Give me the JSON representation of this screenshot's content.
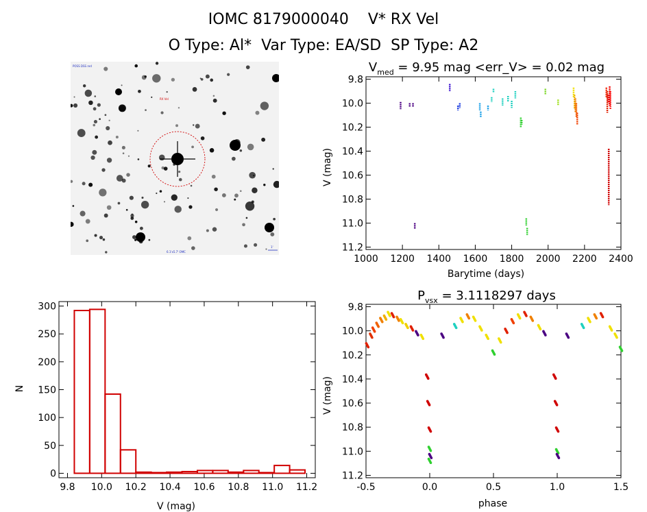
{
  "header": {
    "line1": "IOMC 8179000040    V* RX Vel",
    "line2": "O Type: Al*  Var Type: EA/SD  SP Type: A2"
  },
  "sky_image": {
    "top_label": "POSS DSS red",
    "target_label": "RX Vel",
    "bottom_label": "6.1'x5.7' OMC",
    "scale_label": "1'"
  },
  "chart_data": [
    {
      "type": "scatter",
      "title": "V_med = 9.95 mag <err_V> = 0.02 mag",
      "title_main": "V",
      "title_sub": "med",
      "title_rest": " = 9.95 mag <err_V> = 0.02 mag",
      "xlabel": "Barytime (days)",
      "ylabel": "V (mag)",
      "xlim": [
        1000,
        2400
      ],
      "ylim": [
        11.22,
        9.78
      ],
      "xticks": [
        1000,
        1200,
        1400,
        1600,
        1800,
        2000,
        2200,
        2400
      ],
      "yticks": [
        9.8,
        10.0,
        10.2,
        10.4,
        10.6,
        10.8,
        11.0,
        11.2
      ],
      "segments": [
        {
          "x": 1190,
          "y1": 9.99,
          "y2": 10.05,
          "color": "#4b0082"
        },
        {
          "x": 1240,
          "y1": 10.0,
          "y2": 10.03,
          "color": "#4b0082"
        },
        {
          "x": 1258,
          "y1": 10.0,
          "y2": 10.03,
          "color": "#4b0082"
        },
        {
          "x": 1268,
          "y1": 11.0,
          "y2": 11.05,
          "color": "#4b0082"
        },
        {
          "x": 1460,
          "y1": 9.84,
          "y2": 9.9,
          "color": "#3b10d0"
        },
        {
          "x": 1505,
          "y1": 10.02,
          "y2": 10.06,
          "color": "#2040e0"
        },
        {
          "x": 1515,
          "y1": 10.0,
          "y2": 10.04,
          "color": "#2040e0"
        },
        {
          "x": 1625,
          "y1": 10.0,
          "y2": 10.06,
          "color": "#1ca0e8"
        },
        {
          "x": 1630,
          "y1": 10.07,
          "y2": 10.12,
          "color": "#1ca0e8"
        },
        {
          "x": 1670,
          "y1": 10.02,
          "y2": 10.06,
          "color": "#1ca0e8"
        },
        {
          "x": 1690,
          "y1": 9.95,
          "y2": 9.99,
          "color": "#20d0c0"
        },
        {
          "x": 1700,
          "y1": 9.88,
          "y2": 9.91,
          "color": "#20d0c0"
        },
        {
          "x": 1750,
          "y1": 9.96,
          "y2": 10.02,
          "color": "#20d0c0"
        },
        {
          "x": 1780,
          "y1": 9.94,
          "y2": 9.99,
          "color": "#20d0c0"
        },
        {
          "x": 1800,
          "y1": 9.98,
          "y2": 10.04,
          "color": "#20d0c0"
        },
        {
          "x": 1820,
          "y1": 9.9,
          "y2": 9.96,
          "color": "#20d0c0"
        },
        {
          "x": 1850,
          "y1": 10.12,
          "y2": 10.2,
          "color": "#30d030"
        },
        {
          "x": 1855,
          "y1": 10.14,
          "y2": 10.18,
          "color": "#30d030"
        },
        {
          "x": 1880,
          "y1": 10.96,
          "y2": 11.02,
          "color": "#30d030"
        },
        {
          "x": 1885,
          "y1": 11.04,
          "y2": 11.1,
          "color": "#30d030"
        },
        {
          "x": 1985,
          "y1": 9.88,
          "y2": 9.93,
          "color": "#7ed82a"
        },
        {
          "x": 2055,
          "y1": 9.97,
          "y2": 10.02,
          "color": "#a0e020"
        },
        {
          "x": 2140,
          "y1": 9.87,
          "y2": 9.95,
          "color": "#f0e000"
        },
        {
          "x": 2145,
          "y1": 9.93,
          "y2": 10.05,
          "color": "#f0b000"
        },
        {
          "x": 2150,
          "y1": 9.96,
          "y2": 10.08,
          "color": "#f08000"
        },
        {
          "x": 2155,
          "y1": 10.0,
          "y2": 10.12,
          "color": "#f06000"
        },
        {
          "x": 2160,
          "y1": 10.08,
          "y2": 10.18,
          "color": "#f04000"
        },
        {
          "x": 2320,
          "y1": 9.87,
          "y2": 9.95,
          "color": "#f02000"
        },
        {
          "x": 2325,
          "y1": 9.9,
          "y2": 10.08,
          "color": "#e02000"
        },
        {
          "x": 2330,
          "y1": 9.93,
          "y2": 10.0,
          "color": "#e00000"
        },
        {
          "x": 2333,
          "y1": 10.38,
          "y2": 10.85,
          "color": "#d00000"
        },
        {
          "x": 2338,
          "y1": 9.86,
          "y2": 10.02,
          "color": "#f00000"
        },
        {
          "x": 2342,
          "y1": 9.9,
          "y2": 10.05,
          "color": "#ff2020"
        }
      ]
    },
    {
      "type": "bar",
      "title": "",
      "xlabel": "V (mag)",
      "ylabel": "N",
      "xlim": [
        9.75,
        11.25
      ],
      "ylim": [
        -8,
        308
      ],
      "xticks": [
        9.8,
        10.0,
        10.2,
        10.4,
        10.6,
        10.8,
        11.0,
        11.2
      ],
      "yticks": [
        0,
        50,
        100,
        150,
        200,
        250,
        300
      ],
      "bins": [
        {
          "x0": 9.84,
          "x1": 9.93,
          "n": 292
        },
        {
          "x0": 9.93,
          "x1": 10.02,
          "n": 294
        },
        {
          "x0": 10.02,
          "x1": 10.11,
          "n": 142
        },
        {
          "x0": 10.11,
          "x1": 10.2,
          "n": 42
        },
        {
          "x0": 10.2,
          "x1": 10.29,
          "n": 2
        },
        {
          "x0": 10.29,
          "x1": 10.38,
          "n": 0
        },
        {
          "x0": 10.38,
          "x1": 10.47,
          "n": 2
        },
        {
          "x0": 10.47,
          "x1": 10.56,
          "n": 3
        },
        {
          "x0": 10.56,
          "x1": 10.65,
          "n": 5
        },
        {
          "x0": 10.65,
          "x1": 10.74,
          "n": 5
        },
        {
          "x0": 10.74,
          "x1": 10.83,
          "n": 2
        },
        {
          "x0": 10.83,
          "x1": 10.92,
          "n": 5
        },
        {
          "x0": 10.92,
          "x1": 11.01,
          "n": 0
        },
        {
          "x0": 11.01,
          "x1": 11.1,
          "n": 14
        },
        {
          "x0": 11.1,
          "x1": 11.19,
          "n": 6
        }
      ]
    },
    {
      "type": "scatter",
      "title": "P_vsx = 3.1118297 days",
      "title_main": "P",
      "title_sub": "vsx",
      "title_rest": " = 3.1118297 days",
      "xlabel": "phase",
      "ylabel": "V (mag)",
      "xlim": [
        -0.5,
        1.5
      ],
      "ylim": [
        11.22,
        9.78
      ],
      "xticks": [
        -0.5,
        0.0,
        0.5,
        1.0,
        1.5
      ],
      "yticks": [
        9.8,
        10.0,
        10.2,
        10.4,
        10.6,
        10.8,
        11.0,
        11.2
      ],
      "curve_description": "Phase-folded light curve repeated for two cycles.",
      "points": [
        {
          "phase": -0.49,
          "v": 10.12,
          "color": "#e02000"
        },
        {
          "phase": -0.46,
          "v": 10.04,
          "color": "#e03000"
        },
        {
          "phase": -0.44,
          "v": 9.99,
          "color": "#f04000"
        },
        {
          "phase": -0.41,
          "v": 9.95,
          "color": "#f06000"
        },
        {
          "phase": -0.38,
          "v": 9.91,
          "color": "#f08000"
        },
        {
          "phase": -0.35,
          "v": 9.89,
          "color": "#f0b000"
        },
        {
          "phase": -0.32,
          "v": 9.86,
          "color": "#f0e000"
        },
        {
          "phase": -0.29,
          "v": 9.87,
          "color": "#e02000"
        },
        {
          "phase": -0.25,
          "v": 9.9,
          "color": "#f08000"
        },
        {
          "phase": -0.22,
          "v": 9.92,
          "color": "#f0e000"
        },
        {
          "phase": -0.18,
          "v": 9.96,
          "color": "#f0d000"
        },
        {
          "phase": -0.14,
          "v": 9.98,
          "color": "#e02000"
        },
        {
          "phase": -0.1,
          "v": 10.02,
          "color": "#4b0082"
        },
        {
          "phase": -0.06,
          "v": 10.05,
          "color": "#f0e000"
        },
        {
          "phase": -0.02,
          "v": 10.38,
          "color": "#d00000"
        },
        {
          "phase": -0.01,
          "v": 10.6,
          "color": "#d00000"
        },
        {
          "phase": 0.0,
          "v": 10.82,
          "color": "#d00000"
        },
        {
          "phase": 0.0,
          "v": 10.98,
          "color": "#30d030"
        },
        {
          "phase": 0.005,
          "v": 11.04,
          "color": "#4b0082"
        },
        {
          "phase": 0.0,
          "v": 11.08,
          "color": "#30d030"
        },
        {
          "phase": 0.1,
          "v": 10.04,
          "color": "#4b0082"
        },
        {
          "phase": 0.2,
          "v": 9.96,
          "color": "#20d0c0"
        },
        {
          "phase": 0.25,
          "v": 9.91,
          "color": "#f0e000"
        },
        {
          "phase": 0.3,
          "v": 9.88,
          "color": "#f08000"
        },
        {
          "phase": 0.35,
          "v": 9.9,
          "color": "#f0e000"
        },
        {
          "phase": 0.4,
          "v": 9.98,
          "color": "#f0e000"
        },
        {
          "phase": 0.45,
          "v": 10.05,
          "color": "#f0e000"
        },
        {
          "phase": 0.5,
          "v": 10.18,
          "color": "#30d030"
        },
        {
          "phase": 0.55,
          "v": 10.08,
          "color": "#f0e000"
        },
        {
          "phase": 0.6,
          "v": 10.0,
          "color": "#e02000"
        },
        {
          "phase": 0.65,
          "v": 9.92,
          "color": "#f04000"
        },
        {
          "phase": 0.7,
          "v": 9.88,
          "color": "#f0e000"
        },
        {
          "phase": 0.75,
          "v": 9.86,
          "color": "#e02000"
        },
        {
          "phase": 0.8,
          "v": 9.9,
          "color": "#f08000"
        },
        {
          "phase": 0.86,
          "v": 9.97,
          "color": "#f0e000"
        },
        {
          "phase": 0.9,
          "v": 10.02,
          "color": "#4b0082"
        },
        {
          "phase": 0.98,
          "v": 10.38,
          "color": "#d00000"
        },
        {
          "phase": 0.99,
          "v": 10.6,
          "color": "#d00000"
        },
        {
          "phase": 1.0,
          "v": 10.82,
          "color": "#d00000"
        },
        {
          "phase": 1.0,
          "v": 11.0,
          "color": "#30d030"
        },
        {
          "phase": 1.005,
          "v": 11.04,
          "color": "#4b0082"
        },
        {
          "phase": 1.08,
          "v": 10.04,
          "color": "#4b0082"
        },
        {
          "phase": 1.2,
          "v": 9.96,
          "color": "#20d0c0"
        },
        {
          "phase": 1.25,
          "v": 9.91,
          "color": "#f0e000"
        },
        {
          "phase": 1.3,
          "v": 9.88,
          "color": "#f08000"
        },
        {
          "phase": 1.35,
          "v": 9.87,
          "color": "#e02000"
        },
        {
          "phase": 1.42,
          "v": 9.98,
          "color": "#f0e000"
        },
        {
          "phase": 1.46,
          "v": 10.04,
          "color": "#f0e000"
        },
        {
          "phase": 1.5,
          "v": 10.15,
          "color": "#30d030"
        }
      ]
    }
  ]
}
